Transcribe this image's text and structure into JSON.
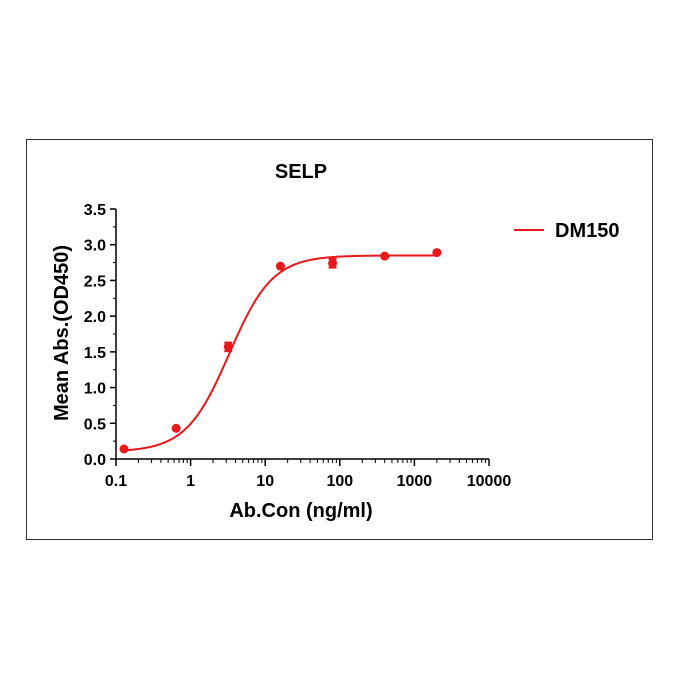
{
  "chart_data": {
    "type": "scatter",
    "title": "SELP",
    "xlabel": "Ab.Con (ng/ml)",
    "ylabel": "Mean Abs.(OD450)",
    "xscale": "log",
    "xlim": [
      0.1,
      10000
    ],
    "ylim": [
      0,
      3.5
    ],
    "xticks": [
      "0.1",
      "1",
      "10",
      "100",
      "1000",
      "10000"
    ],
    "yticks": [
      "0.0",
      "0.5",
      "1.0",
      "1.5",
      "2.0",
      "2.5",
      "3.0",
      "3.5"
    ],
    "grid": false,
    "legend_position": "top-right",
    "series": [
      {
        "name": "DM150",
        "color": "#e8191b",
        "points": [
          {
            "x": 0.128,
            "y": 0.14,
            "err": 0.0
          },
          {
            "x": 0.64,
            "y": 0.43,
            "err": 0.0
          },
          {
            "x": 3.2,
            "y": 1.57,
            "err": 0.06
          },
          {
            "x": 16,
            "y": 2.7,
            "err": 0.0
          },
          {
            "x": 80,
            "y": 2.74,
            "err": 0.06
          },
          {
            "x": 400,
            "y": 2.84,
            "err": 0.0
          },
          {
            "x": 2000,
            "y": 2.89,
            "err": 0.0
          }
        ],
        "fit": {
          "bottom": 0.1,
          "top": 2.85,
          "ec50": 3.3,
          "hill": 1.5
        }
      }
    ]
  }
}
